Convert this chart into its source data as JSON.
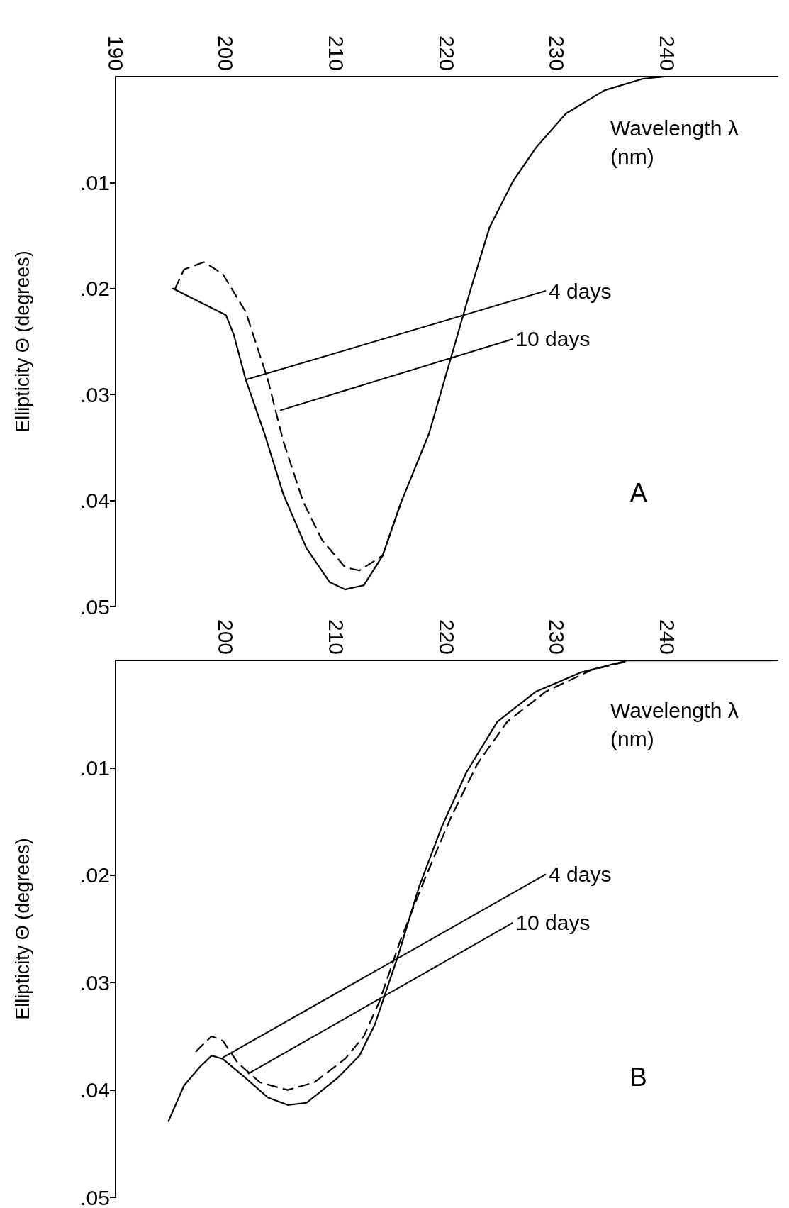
{
  "chart_data": [
    {
      "type": "line",
      "xlabel": "Wavelength λ (nm)",
      "ylabel": "Ellipticity Θ (degrees)",
      "xlim": [
        190,
        250
      ],
      "xticks": [
        190,
        200,
        210,
        220,
        230,
        240
      ],
      "ylim": [
        0.05,
        0
      ],
      "yticks": [
        {
          "value": 0.01,
          "label": ".01"
        },
        {
          "value": 0.02,
          "label": ".02"
        },
        {
          "value": 0.03,
          "label": ".03"
        },
        {
          "value": 0.04,
          "label": ".04"
        },
        {
          "value": 0.05,
          "label": ".05"
        }
      ],
      "grid": false,
      "marker": "none",
      "annotations": [
        "A",
        {
          "text": "4 days",
          "x": 201.8,
          "y": 0.0286
        },
        {
          "text": "10 days",
          "x": 204.9,
          "y": 0.0315
        }
      ],
      "series": [
        {
          "color": "#000000",
          "line_style": "solid",
          "x": [
            195.2,
            200.0,
            200.7,
            201.8,
            203.5,
            205.2,
            207.3,
            209.4,
            210.8,
            212.5,
            214.2,
            215.9,
            218.4,
            220.4,
            222.2,
            223.9,
            226.0,
            228.1,
            230.8,
            234.3,
            237.8,
            239.8,
            246
          ],
          "values": [
            0.02,
            0.0225,
            0.0243,
            0.0286,
            0.0337,
            0.0394,
            0.0445,
            0.0477,
            0.0484,
            0.048,
            0.0452,
            0.0401,
            0.0337,
            0.0265,
            0.02,
            0.0142,
            0.0099,
            0.0067,
            0.0035,
            0.0013,
            0.0002,
            0,
            0
          ]
        },
        {
          "color": "#000000",
          "line_style": "dashed",
          "x": [
            195.4,
            196.2,
            198.0,
            199.7,
            201.8,
            203.8,
            205.2,
            207.0,
            208.7,
            210.8,
            212.1,
            214.2,
            215.9
          ],
          "values": [
            0.02,
            0.0182,
            0.0175,
            0.0186,
            0.0222,
            0.0286,
            0.0344,
            0.0401,
            0.0437,
            0.0463,
            0.0466,
            0.0452,
            0.0401
          ]
        }
      ]
    },
    {
      "type": "line",
      "xlabel": "Wavelength λ (nm)",
      "ylabel": "Ellipticity Θ (degrees)",
      "xlim": [
        190,
        250
      ],
      "xticks": [
        200,
        210,
        220,
        230,
        240
      ],
      "ylim": [
        0.05,
        0
      ],
      "yticks": [
        {
          "value": 0.01,
          "label": ".01"
        },
        {
          "value": 0.02,
          "label": ".02"
        },
        {
          "value": 0.03,
          "label": ".03"
        },
        {
          "value": 0.04,
          "label": ".04"
        },
        {
          "value": 0.05,
          "label": ".05"
        }
      ],
      "grid": false,
      "marker": "none",
      "annotations": [
        "B",
        {
          "text": "4 days",
          "x": 199.7,
          "y": 0.037
        },
        {
          "text": "10 days",
          "x": 202,
          "y": 0.0385
        }
      ],
      "series": [
        {
          "color": "#000000",
          "line_style": "solid",
          "x": [
            194.8,
            196.2,
            197.6,
            198.7,
            199.7,
            201.8,
            203.8,
            205.6,
            207.3,
            210.1,
            212.1,
            213.5,
            215.6,
            217.5,
            219.6,
            221.8,
            224.6,
            228.1,
            232.2,
            236.4,
            239.8,
            244.7,
            249.5
          ],
          "values": [
            0.0429,
            0.0396,
            0.0379,
            0.0368,
            0.0371,
            0.0389,
            0.0407,
            0.0414,
            0.0412,
            0.0389,
            0.0368,
            0.0339,
            0.0275,
            0.0211,
            0.0154,
            0.0104,
            0.0057,
            0.0029,
            0.0011,
            0,
            0,
            0,
            0
          ]
        },
        {
          "color": "#000000",
          "line_style": "dashed",
          "x": [
            197.3,
            198.7,
            199.7,
            201.1,
            203.1,
            205.6,
            208.0,
            210.8,
            212.5,
            213.9,
            215.8,
            218.0,
            220.4,
            222.8,
            225.5,
            229.0,
            233.1,
            236.7
          ],
          "values": [
            0.0364,
            0.035,
            0.0354,
            0.0375,
            0.0393,
            0.04,
            0.0393,
            0.0371,
            0.035,
            0.0318,
            0.0261,
            0.0204,
            0.0146,
            0.0096,
            0.0057,
            0.0029,
            0.0009,
            0
          ]
        }
      ]
    }
  ]
}
